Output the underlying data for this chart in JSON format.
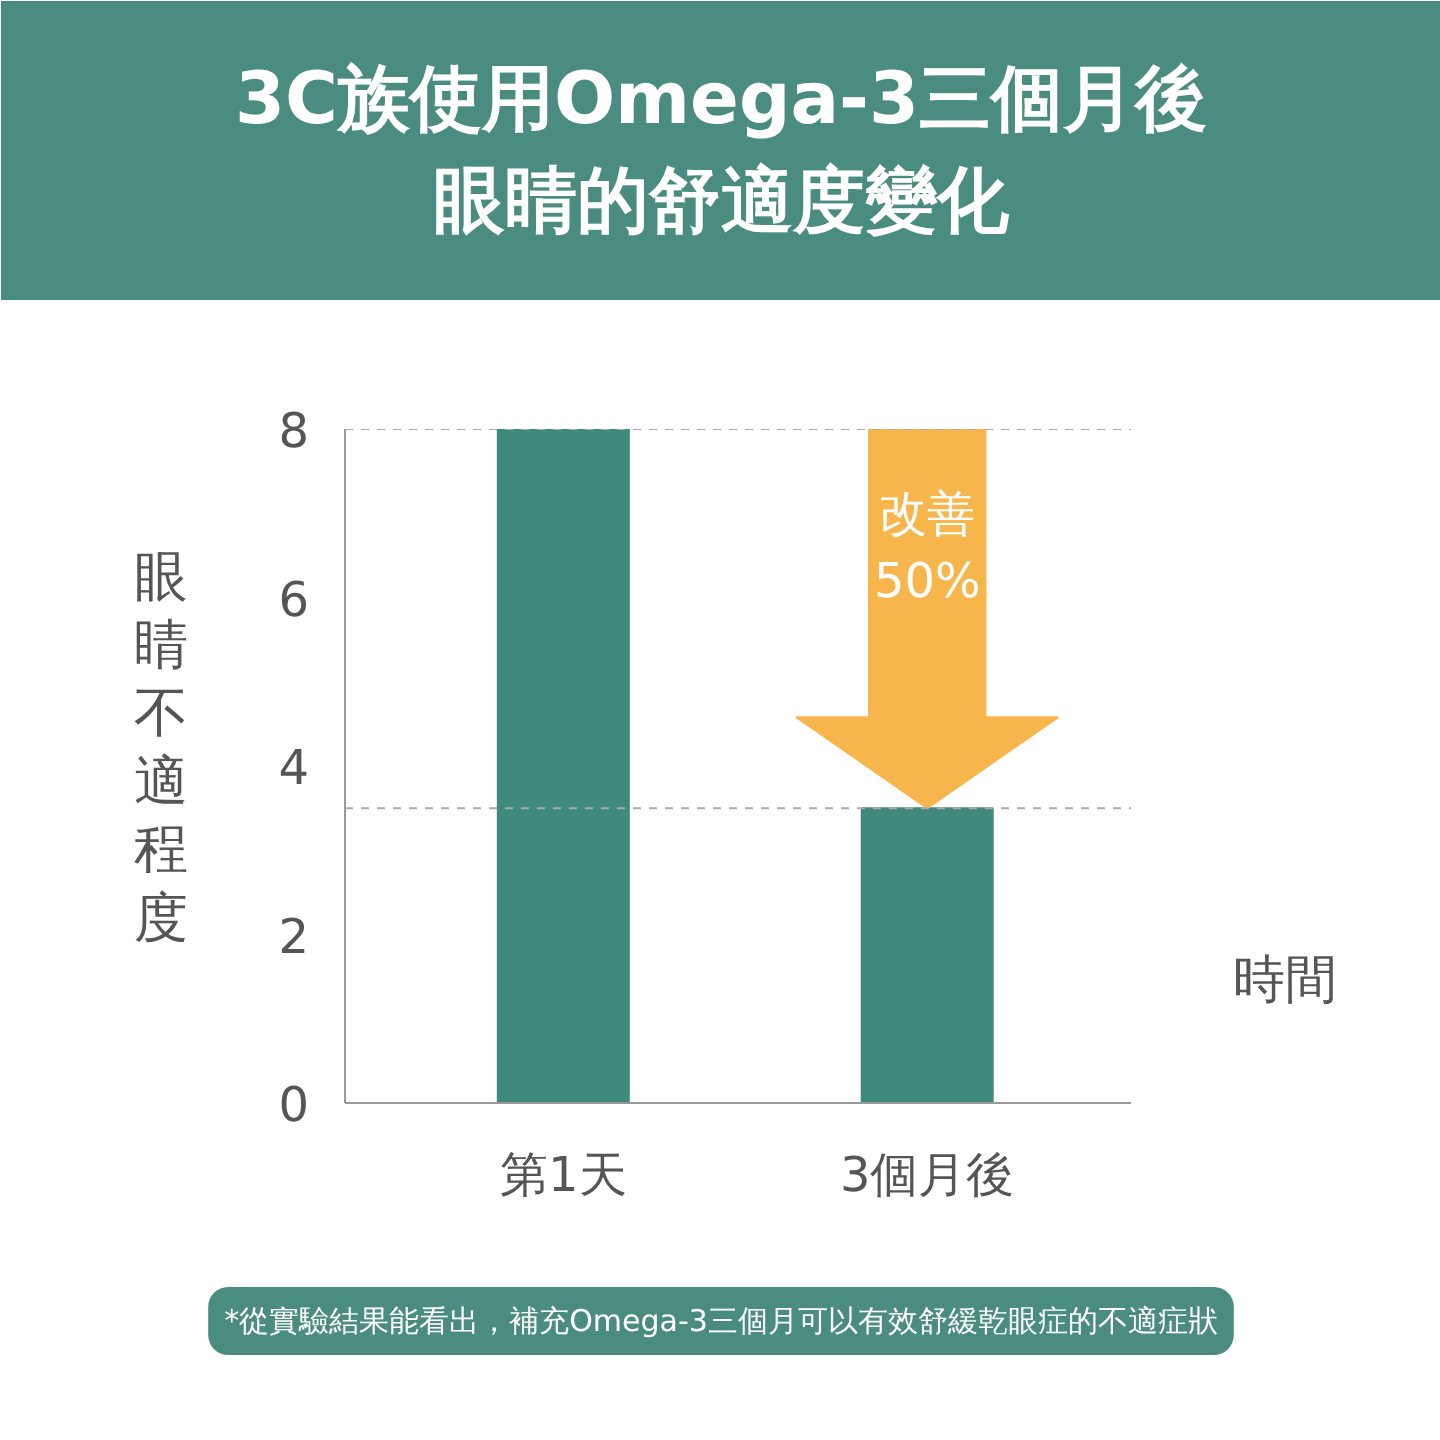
{
  "chart_data": {
    "type": "bar",
    "title": "3C族使用Omega-3三個月後眼睛的舒適度變化",
    "xlabel": "時間",
    "ylabel": "眼睛不適程度",
    "categories": [
      "第1天",
      "3個月後"
    ],
    "values": [
      8,
      3.5
    ],
    "color": "#3f8a7d",
    "ylim": [
      0,
      8
    ],
    "yticks": [
      0,
      2,
      4,
      6,
      8
    ],
    "grid": false,
    "ref_lines": [
      {
        "axis": "y",
        "value": 8,
        "line_style": "dashed",
        "color": "#aaaaaa"
      },
      {
        "axis": "y",
        "value": 3.5,
        "line_style": "dashed",
        "color": "#aaaaaa"
      }
    ],
    "annotations": [
      "改善\n50%",
      "*從實驗結果能看出，補充Omega-3三個月可以有效舒緩乾眼症的不適症狀"
    ]
  }
}
